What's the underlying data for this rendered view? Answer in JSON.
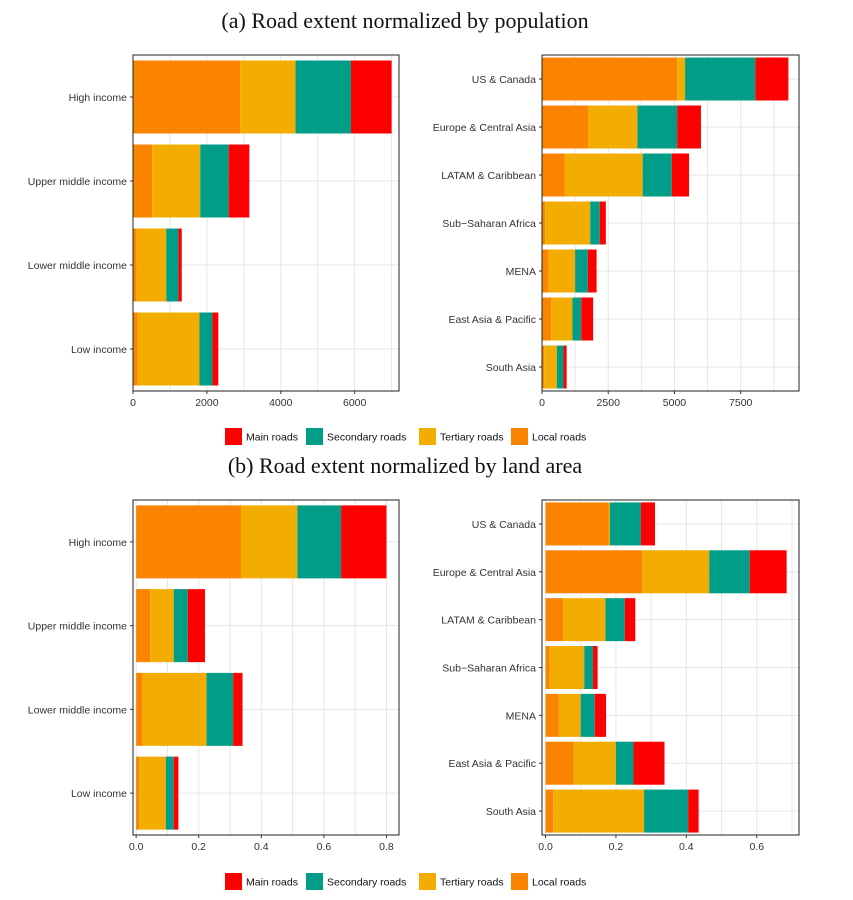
{
  "sections": [
    {
      "title": "(a) Road extent normalized by population"
    },
    {
      "title": "(b) Road extent normalized by land area"
    }
  ],
  "legend": {
    "items": [
      {
        "label": "Main roads",
        "color": "#ff0000"
      },
      {
        "label": "Secondary roads",
        "color": "#009e89"
      },
      {
        "label": "Tertiary roads",
        "color": "#f2ad00"
      },
      {
        "label": "Local roads",
        "color": "#fa8300"
      }
    ]
  },
  "chart_data": [
    {
      "id": "pop-income",
      "type": "bar",
      "orientation": "horizontal",
      "stacked": true,
      "title": "(a) Road extent normalized by population",
      "xlabel": "",
      "ylabel": "",
      "xlim": [
        0,
        7200
      ],
      "xticks": [
        0,
        2000,
        4000,
        6000
      ],
      "xtick_labels": [
        "0",
        "2000",
        "4000",
        "6000"
      ],
      "categories": [
        "High income",
        "Upper middle income",
        "Lower middle income",
        "Low income"
      ],
      "series": [
        {
          "name": "Local roads",
          "color": "#fa8300",
          "values": [
            2900,
            520,
            100,
            120
          ]
        },
        {
          "name": "Tertiary roads",
          "color": "#f2ad00",
          "values": [
            1500,
            1300,
            800,
            1680
          ]
        },
        {
          "name": "Secondary roads",
          "color": "#009e89",
          "values": [
            1500,
            770,
            330,
            350
          ]
        },
        {
          "name": "Main roads",
          "color": "#ff0000",
          "values": [
            1100,
            560,
            90,
            160
          ]
        }
      ]
    },
    {
      "id": "pop-region",
      "type": "bar",
      "orientation": "horizontal",
      "stacked": true,
      "title": "(a) Road extent normalized by population",
      "xlabel": "",
      "ylabel": "",
      "xlim": [
        0,
        9700
      ],
      "xticks": [
        0,
        2500,
        5000,
        7500
      ],
      "xtick_labels": [
        "0",
        "2500",
        "5000",
        "7500"
      ],
      "categories": [
        "US & Canada",
        "Europe & Central Asia",
        "LATAM & Caribbean",
        "Sub−Saharan Africa",
        "MENA",
        "East Asia & Pacific",
        "South Asia"
      ],
      "series": [
        {
          "name": "Local roads",
          "color": "#fa8300",
          "values": [
            5100,
            1750,
            850,
            120,
            250,
            350,
            80
          ]
        },
        {
          "name": "Tertiary roads",
          "color": "#f2ad00",
          "values": [
            300,
            1850,
            2950,
            1700,
            1000,
            800,
            480
          ]
        },
        {
          "name": "Secondary roads",
          "color": "#009e89",
          "values": [
            2650,
            1500,
            1100,
            360,
            480,
            330,
            250
          ]
        },
        {
          "name": "Main roads",
          "color": "#ff0000",
          "values": [
            1250,
            900,
            650,
            230,
            330,
            450,
            120
          ]
        }
      ]
    },
    {
      "id": "area-income",
      "type": "bar",
      "orientation": "horizontal",
      "stacked": true,
      "title": "(b) Road extent normalized by land area",
      "xlabel": "",
      "ylabel": "",
      "xlim": [
        -0.01,
        0.84
      ],
      "xticks": [
        0,
        0.2,
        0.4,
        0.6,
        0.8
      ],
      "xtick_labels": [
        "0.0",
        "0.2",
        "0.4",
        "0.6",
        "0.8"
      ],
      "categories": [
        "High income",
        "Upper middle income",
        "Lower middle income",
        "Low income"
      ],
      "series": [
        {
          "name": "Local roads",
          "color": "#fa8300",
          "values": [
            0.335,
            0.045,
            0.02,
            0.01
          ]
        },
        {
          "name": "Tertiary roads",
          "color": "#f2ad00",
          "values": [
            0.18,
            0.075,
            0.205,
            0.085
          ]
        },
        {
          "name": "Secondary roads",
          "color": "#009e89",
          "values": [
            0.14,
            0.045,
            0.085,
            0.025
          ]
        },
        {
          "name": "Main roads",
          "color": "#ff0000",
          "values": [
            0.145,
            0.055,
            0.03,
            0.015
          ]
        }
      ]
    },
    {
      "id": "area-region",
      "type": "bar",
      "orientation": "horizontal",
      "stacked": true,
      "title": "(b) Road extent normalized by land area",
      "xlabel": "",
      "ylabel": "",
      "xlim": [
        -0.01,
        0.72
      ],
      "xticks": [
        0,
        0.2,
        0.4,
        0.6
      ],
      "xtick_labels": [
        "0.0",
        "0.2",
        "0.4",
        "0.6"
      ],
      "categories": [
        "US & Canada",
        "Europe & Central Asia",
        "LATAM & Caribbean",
        "Sub−Saharan Africa",
        "MENA",
        "East Asia & Pacific",
        "South Asia"
      ],
      "series": [
        {
          "name": "Local roads",
          "color": "#fa8300",
          "values": [
            0.18,
            0.275,
            0.05,
            0.012,
            0.038,
            0.08,
            0.022
          ]
        },
        {
          "name": "Tertiary roads",
          "color": "#f2ad00",
          "values": [
            0.003,
            0.19,
            0.12,
            0.098,
            0.062,
            0.12,
            0.258
          ]
        },
        {
          "name": "Secondary roads",
          "color": "#009e89",
          "values": [
            0.088,
            0.115,
            0.055,
            0.025,
            0.04,
            0.05,
            0.125
          ]
        },
        {
          "name": "Main roads",
          "color": "#ff0000",
          "values": [
            0.04,
            0.105,
            0.03,
            0.013,
            0.032,
            0.088,
            0.03
          ]
        }
      ]
    }
  ]
}
